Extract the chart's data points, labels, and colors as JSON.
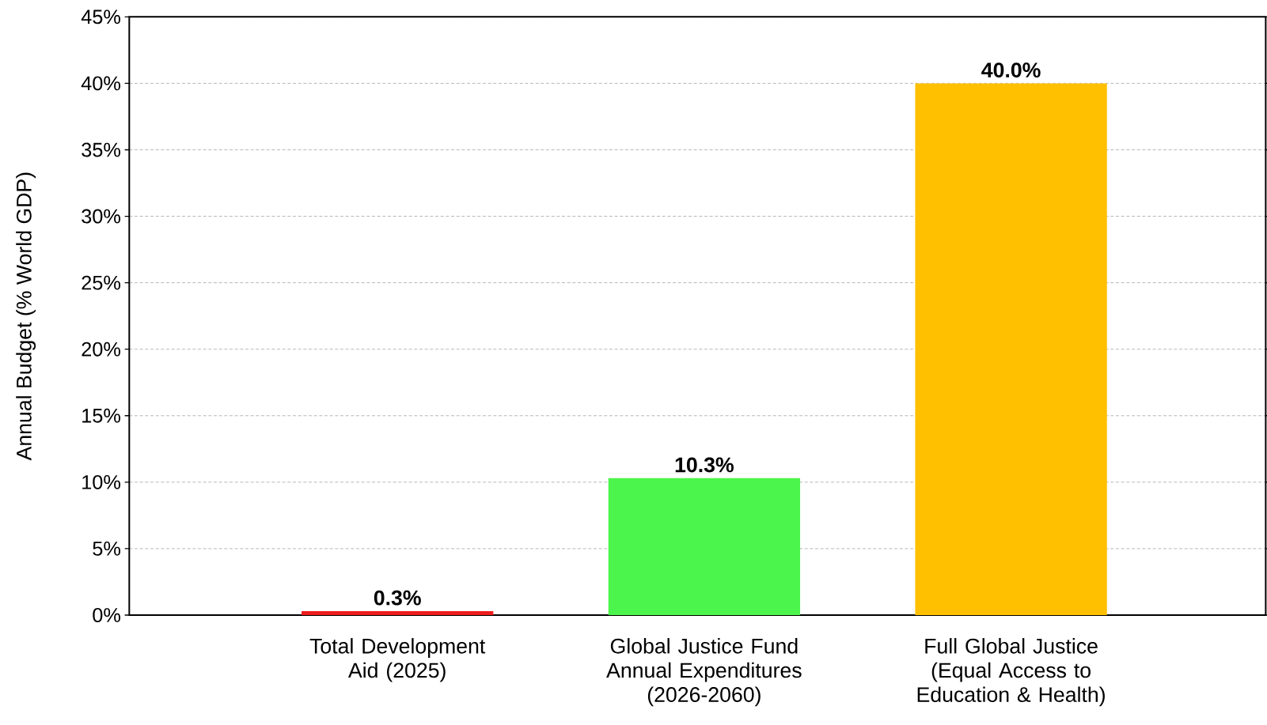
{
  "chart_data": {
    "type": "bar",
    "ylabel": "Annual Budget (% World GDP)",
    "categories": [
      "Total Development Aid (2025)",
      "Global Justice Fund Annual Expenditures (2026-2060)",
      "Full Global Justice (Equal Access to Education & Health)"
    ],
    "values": [
      0.3,
      10.3,
      40.0
    ],
    "colors": [
      "#ee1c1c",
      "#4cf54c",
      "#ffc000"
    ],
    "value_labels": [
      "0.3%",
      "10.3%",
      "40.0%"
    ],
    "ylim": [
      0,
      45
    ],
    "yticks": [
      {
        "value": 0,
        "label": "0%"
      },
      {
        "value": 5,
        "label": "5%"
      },
      {
        "value": 10,
        "label": "10%"
      },
      {
        "value": 15,
        "label": "15%"
      },
      {
        "value": 20,
        "label": "20%"
      },
      {
        "value": 25,
        "label": "25%"
      },
      {
        "value": 30,
        "label": "30%"
      },
      {
        "value": 35,
        "label": "35%"
      },
      {
        "value": 40,
        "label": "40%"
      },
      {
        "value": 45,
        "label": "45%"
      }
    ],
    "grid": "y"
  }
}
